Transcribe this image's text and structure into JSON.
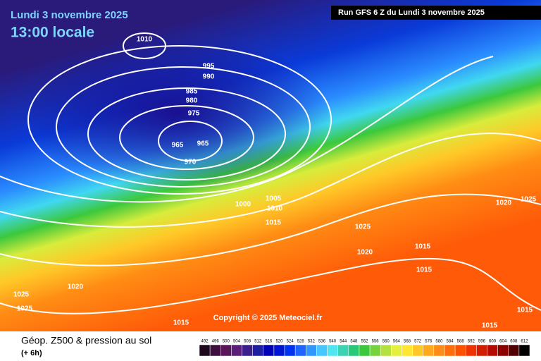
{
  "header": {
    "date": "Lundi 3 novembre 2025",
    "time": "13:00 locale",
    "run": "Run GFS 6 Z du Lundi 3 novembre 2025"
  },
  "map": {
    "isobar_labels": [
      "1010",
      "995",
      "990",
      "985",
      "980",
      "975",
      "965",
      "965",
      "970",
      "1000",
      "1005",
      "1010",
      "1015",
      "1025",
      "1020",
      "1015",
      "1015",
      "1020",
      "1025",
      "1020",
      "1025",
      "1025",
      "1015",
      "1015",
      "1015"
    ],
    "copyright": "Copyright © 2025 Meteociel.fr"
  },
  "footer": {
    "title": "Géop. Z500 & pression au sol",
    "lead": "(+ 6h)",
    "scale": {
      "values": [
        492,
        496,
        500,
        504,
        508,
        512,
        516,
        520,
        524,
        528,
        532,
        536,
        540,
        544,
        548,
        552,
        556,
        560,
        564,
        568,
        572,
        576,
        580,
        584,
        588,
        592,
        596,
        600,
        604,
        608,
        612
      ],
      "colors": [
        "#1e0a1e",
        "#3c0f3c",
        "#5a145a",
        "#5a1e78",
        "#3c1e8c",
        "#1e1ea0",
        "#0000b4",
        "#0014d2",
        "#0032f0",
        "#1e64ff",
        "#3296ff",
        "#46c8ff",
        "#50e6f0",
        "#3cd2b4",
        "#28c878",
        "#3cc83c",
        "#78d23c",
        "#b4e13c",
        "#e6f03c",
        "#ffe632",
        "#ffc828",
        "#ffaa1e",
        "#ff8c14",
        "#ff6e0a",
        "#ff5000",
        "#f03200",
        "#d21e00",
        "#b40a00",
        "#8c0000",
        "#500000",
        "#000000"
      ]
    }
  }
}
